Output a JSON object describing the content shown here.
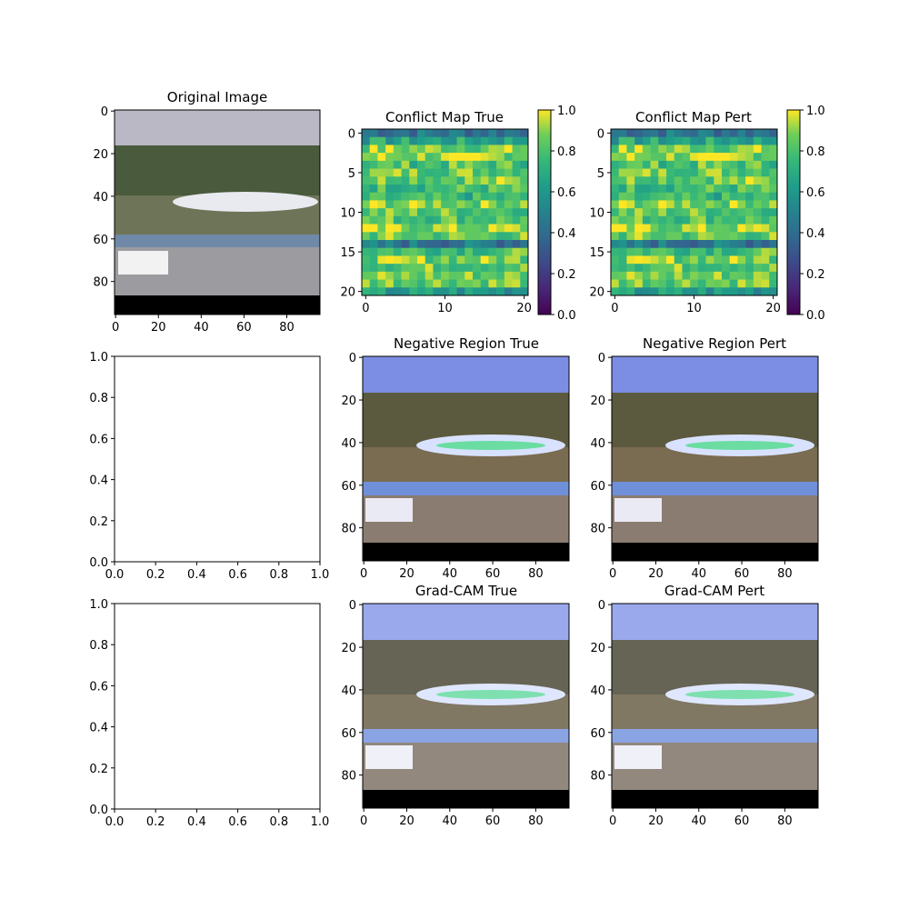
{
  "figure": {
    "background": "#ffffff"
  },
  "panels": {
    "original": {
      "title": "Original Image",
      "xticks": [
        "0",
        "20",
        "40",
        "60",
        "80"
      ],
      "yticks": [
        "0",
        "20",
        "40",
        "60",
        "80"
      ],
      "xticks_values": [
        0,
        20,
        40,
        60,
        80
      ],
      "yticks_values": [
        0,
        20,
        40,
        60,
        80
      ],
      "extent": [
        96,
        96
      ]
    },
    "conflict_true": {
      "title": "Conflict Map True",
      "xticks": [
        "0",
        "10",
        "20"
      ],
      "yticks": [
        "0",
        "5",
        "10",
        "15",
        "20"
      ],
      "xticks_values": [
        0,
        10,
        20
      ],
      "yticks_values": [
        0,
        5,
        10,
        15,
        20
      ],
      "colorbar_ticks": [
        "0.0",
        "0.2",
        "0.4",
        "0.6",
        "0.8",
        "1.0"
      ]
    },
    "conflict_pert": {
      "title": "Conflict Map Pert",
      "xticks": [
        "0",
        "10",
        "20"
      ],
      "yticks": [
        "0",
        "5",
        "10",
        "15",
        "20"
      ],
      "xticks_values": [
        0,
        10,
        20
      ],
      "yticks_values": [
        0,
        5,
        10,
        15,
        20
      ],
      "colorbar_ticks": [
        "0.0",
        "0.2",
        "0.4",
        "0.6",
        "0.8",
        "1.0"
      ]
    },
    "empty_1": {
      "title": "",
      "xticks": [
        "0.0",
        "0.2",
        "0.4",
        "0.6",
        "0.8",
        "1.0"
      ],
      "yticks": [
        "0.0",
        "0.2",
        "0.4",
        "0.6",
        "0.8",
        "1.0"
      ]
    },
    "negative_true": {
      "title": "Negative Region True",
      "xticks": [
        "0",
        "20",
        "40",
        "60",
        "80"
      ],
      "yticks": [
        "0",
        "20",
        "40",
        "60",
        "80"
      ],
      "xticks_values": [
        0,
        20,
        40,
        60,
        80
      ],
      "yticks_values": [
        0,
        20,
        40,
        60,
        80
      ]
    },
    "negative_pert": {
      "title": "Negative Region Pert",
      "xticks": [
        "0",
        "20",
        "40",
        "60",
        "80"
      ],
      "yticks": [
        "0",
        "20",
        "40",
        "60",
        "80"
      ],
      "xticks_values": [
        0,
        20,
        40,
        60,
        80
      ],
      "yticks_values": [
        0,
        20,
        40,
        60,
        80
      ]
    },
    "empty_2": {
      "title": "",
      "xticks": [
        "0.0",
        "0.2",
        "0.4",
        "0.6",
        "0.8",
        "1.0"
      ],
      "yticks": [
        "0.0",
        "0.2",
        "0.4",
        "0.6",
        "0.8",
        "1.0"
      ]
    },
    "gradcam_true": {
      "title": "Grad-CAM True",
      "xticks": [
        "0",
        "20",
        "40",
        "60",
        "80"
      ],
      "yticks": [
        "0",
        "20",
        "40",
        "60",
        "80"
      ],
      "xticks_values": [
        0,
        20,
        40,
        60,
        80
      ],
      "yticks_values": [
        0,
        20,
        40,
        60,
        80
      ]
    },
    "gradcam_pert": {
      "title": "Grad-CAM Pert",
      "xticks": [
        "0",
        "20",
        "40",
        "60",
        "80"
      ],
      "yticks": [
        "0",
        "20",
        "40",
        "60",
        "80"
      ],
      "xticks_values": [
        0,
        20,
        40,
        60,
        80
      ],
      "yticks_values": [
        0,
        20,
        40,
        60,
        80
      ]
    }
  },
  "chart_data": [
    {
      "type": "heatmap",
      "title": "Conflict Map True",
      "grid_size": [
        21,
        21
      ],
      "colormap": "viridis",
      "vmin": 0.0,
      "vmax": 1.0,
      "colorbar_ticks": [
        0.0,
        0.2,
        0.4,
        0.6,
        0.8,
        1.0
      ],
      "row_means": [
        0.45,
        0.65,
        0.88,
        0.9,
        0.8,
        0.86,
        0.87,
        0.78,
        0.72,
        0.9,
        0.83,
        0.82,
        0.9,
        0.84,
        0.45,
        0.8,
        0.88,
        0.84,
        0.86,
        0.88,
        0.6
      ]
    },
    {
      "type": "heatmap",
      "title": "Conflict Map Pert",
      "grid_size": [
        21,
        21
      ],
      "colormap": "viridis",
      "vmin": 0.0,
      "vmax": 1.0,
      "colorbar_ticks": [
        0.0,
        0.2,
        0.4,
        0.6,
        0.8,
        1.0
      ],
      "row_means": [
        0.45,
        0.65,
        0.88,
        0.9,
        0.8,
        0.86,
        0.87,
        0.78,
        0.72,
        0.9,
        0.83,
        0.82,
        0.9,
        0.84,
        0.45,
        0.8,
        0.88,
        0.84,
        0.86,
        0.88,
        0.6
      ]
    }
  ]
}
